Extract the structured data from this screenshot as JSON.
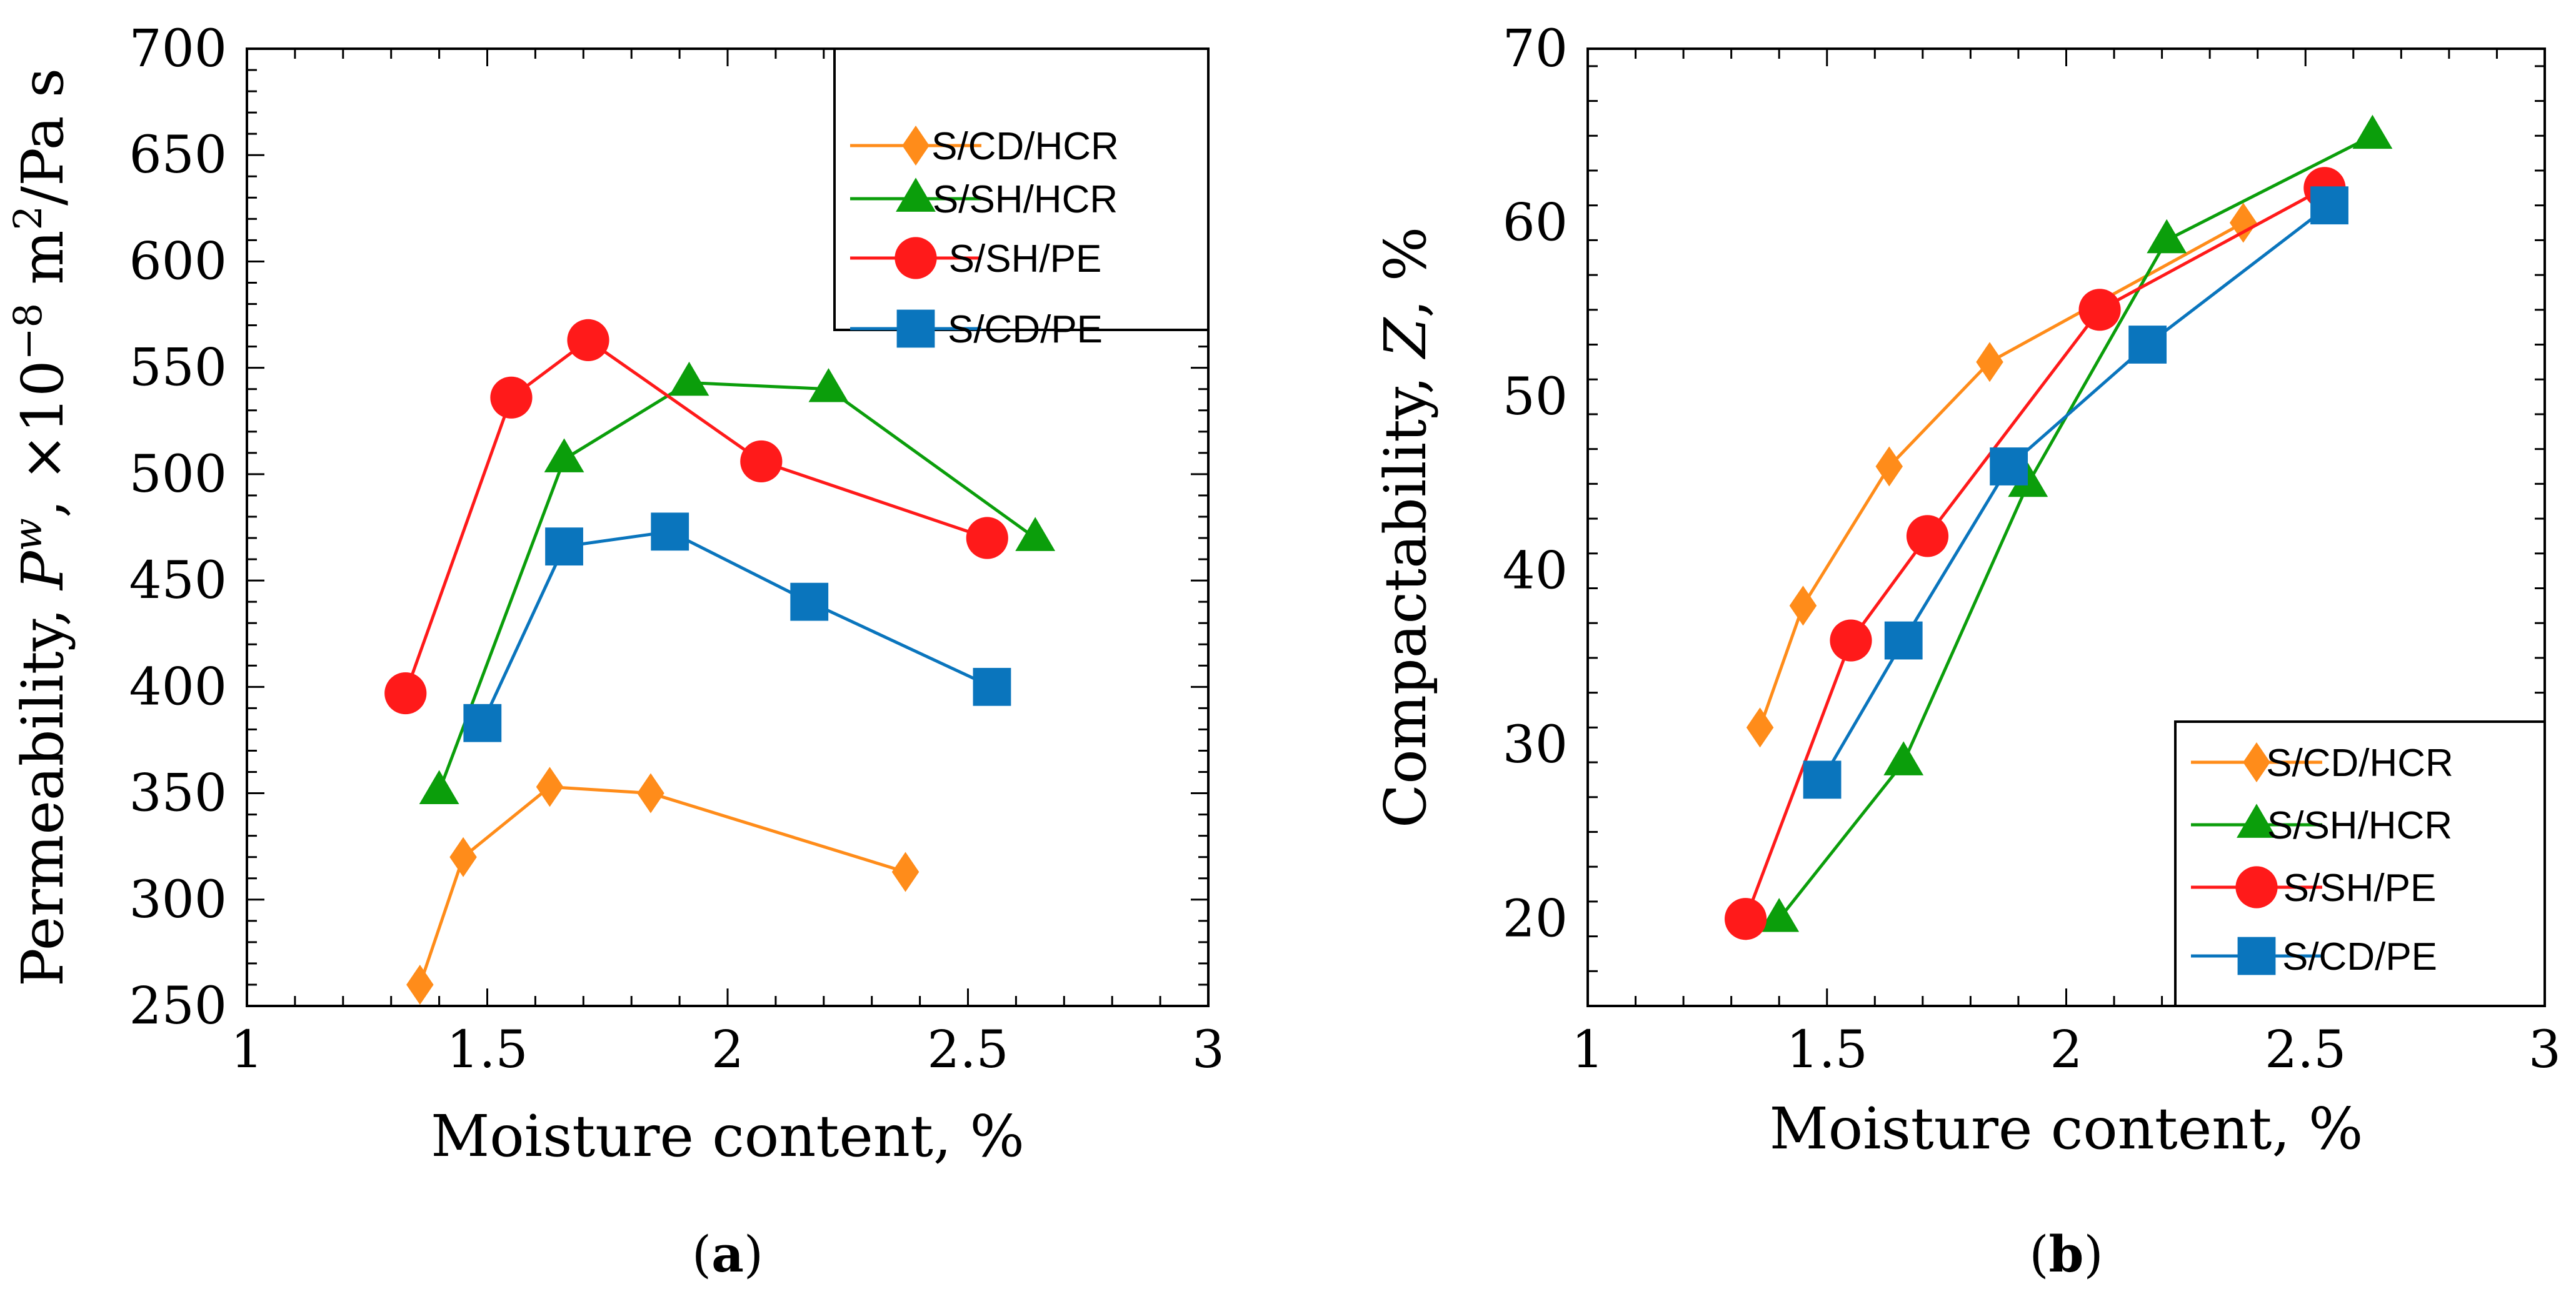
{
  "chart_data": [
    {
      "panel_label": "(a)",
      "type": "line",
      "xlabel": "Moisture content,  %",
      "ylabel": "Permeability, P^w,  ×10^−8 m^2/Pa s",
      "ylabel_parts": {
        "prefix": "Permeability, ",
        "symbol": "P",
        "symbol_sup": "w",
        "mid": ",  ×10",
        "exp": "−8",
        "unit_pre": " m",
        "unit_sup": "2",
        "unit_post": "/Pa s"
      },
      "xlim": [
        1,
        3
      ],
      "ylim": [
        250,
        700
      ],
      "x_ticks": [
        1,
        1.5,
        2,
        2.5,
        3
      ],
      "x_tick_labels": [
        "1",
        "1.5",
        "2",
        "2.5",
        "3"
      ],
      "y_ticks": [
        250,
        300,
        350,
        400,
        450,
        500,
        550,
        600,
        650,
        700
      ],
      "y_tick_labels": [
        "250",
        "300",
        "350",
        "400",
        "450",
        "500",
        "550",
        "600",
        "650",
        "700"
      ],
      "legend_position": "top-right",
      "grid": false,
      "series": [
        {
          "name": "S/CD/HCR",
          "color": "#ff8c1a",
          "marker": "diamond",
          "x": [
            1.36,
            1.45,
            1.63,
            1.84,
            2.37
          ],
          "y": [
            260,
            320,
            353,
            350,
            313
          ]
        },
        {
          "name": "S/SH/HCR",
          "color": "#0b9e0b",
          "marker": "triangle",
          "x": [
            1.4,
            1.66,
            1.92,
            2.21,
            2.64
          ],
          "y": [
            351,
            507,
            543,
            540,
            470
          ]
        },
        {
          "name": "S/SH/PE",
          "color": "#ff1a1a",
          "marker": "circle",
          "x": [
            1.33,
            1.55,
            1.71,
            2.07,
            2.54
          ],
          "y": [
            397,
            536,
            563,
            506,
            470
          ]
        },
        {
          "name": "S/CD/PE",
          "color": "#0a75bd",
          "marker": "square",
          "x": [
            1.49,
            1.66,
            1.88,
            2.17,
            2.55
          ],
          "y": [
            383,
            466,
            473,
            440,
            400
          ]
        }
      ]
    },
    {
      "panel_label": "(b)",
      "type": "line",
      "xlabel": "Moisture content,  %",
      "ylabel": "Compactability, Z,  %",
      "ylabel_parts": {
        "prefix": "Compactability, ",
        "symbol": "Z",
        "suffix": ",  %"
      },
      "xlim": [
        1,
        3
      ],
      "ylim": [
        15,
        70
      ],
      "x_ticks": [
        1,
        1.5,
        2,
        2.5,
        3
      ],
      "x_tick_labels": [
        "1",
        "1.5",
        "2",
        "2.5",
        "3"
      ],
      "y_ticks": [
        20,
        30,
        40,
        50,
        60,
        70
      ],
      "y_tick_labels": [
        "20",
        "30",
        "40",
        "50",
        "60",
        "70"
      ],
      "legend_position": "bottom-right",
      "grid": false,
      "series": [
        {
          "name": "S/CD/HCR",
          "color": "#ff8c1a",
          "marker": "diamond",
          "x": [
            1.36,
            1.45,
            1.63,
            1.84,
            2.37
          ],
          "y": [
            31,
            38,
            46,
            52,
            60
          ]
        },
        {
          "name": "S/SH/HCR",
          "color": "#0b9e0b",
          "marker": "triangle",
          "x": [
            1.4,
            1.66,
            1.92,
            2.21,
            2.64
          ],
          "y": [
            20,
            29,
            45,
            59,
            65
          ]
        },
        {
          "name": "S/SH/PE",
          "color": "#ff1a1a",
          "marker": "circle",
          "x": [
            1.33,
            1.55,
            1.71,
            2.07,
            2.54
          ],
          "y": [
            20,
            36,
            42,
            55,
            62
          ]
        },
        {
          "name": "S/CD/PE",
          "color": "#0a75bd",
          "marker": "square",
          "x": [
            1.49,
            1.66,
            1.88,
            2.17,
            2.55
          ],
          "y": [
            28,
            36,
            46,
            53,
            61
          ]
        }
      ]
    }
  ]
}
